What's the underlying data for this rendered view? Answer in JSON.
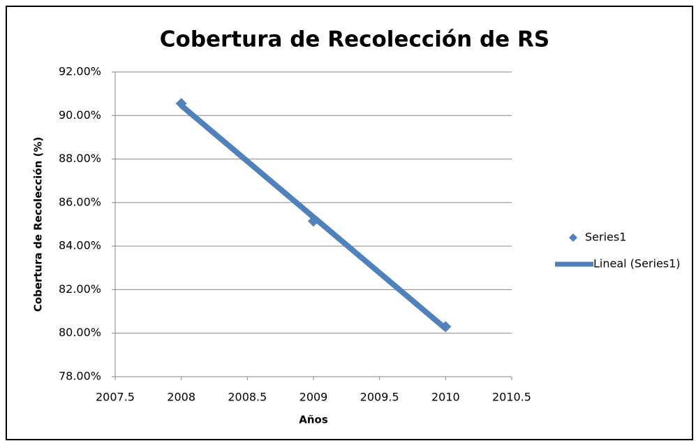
{
  "chart_data": {
    "type": "scatter",
    "title": "Cobertura de Recolección de RS",
    "x_label": "Años",
    "y_label": "Cobertura de Recolección (%)",
    "series": [
      {
        "name": "Series1",
        "color": "#4f81bd",
        "marker": "diamond",
        "x": [
          2008,
          2009,
          2010
        ],
        "values": [
          90.55,
          85.15,
          80.3
        ]
      },
      {
        "name": "Lineal (Series1)",
        "color": "#4f81bd",
        "marker": "line",
        "x": [
          2008,
          2010
        ],
        "values": [
          90.46,
          80.21
        ]
      }
    ],
    "xlim": [
      2007.5,
      2010.5
    ],
    "xticks": [
      2007.5,
      2008,
      2008.5,
      2009,
      2009.5,
      2010,
      2010.5
    ],
    "ylim": [
      78,
      92
    ],
    "yticks": [
      {
        "value": 78,
        "label": "78.00%"
      },
      {
        "value": 80,
        "label": "80.00%"
      },
      {
        "value": 82,
        "label": "82.00%"
      },
      {
        "value": 84,
        "label": "84.00%"
      },
      {
        "value": 86,
        "label": "86.00%"
      },
      {
        "value": 88,
        "label": "88.00%"
      },
      {
        "value": 90,
        "label": "90.00%"
      },
      {
        "value": 92,
        "label": "92.00%"
      }
    ],
    "grid": true,
    "legend": "right"
  }
}
